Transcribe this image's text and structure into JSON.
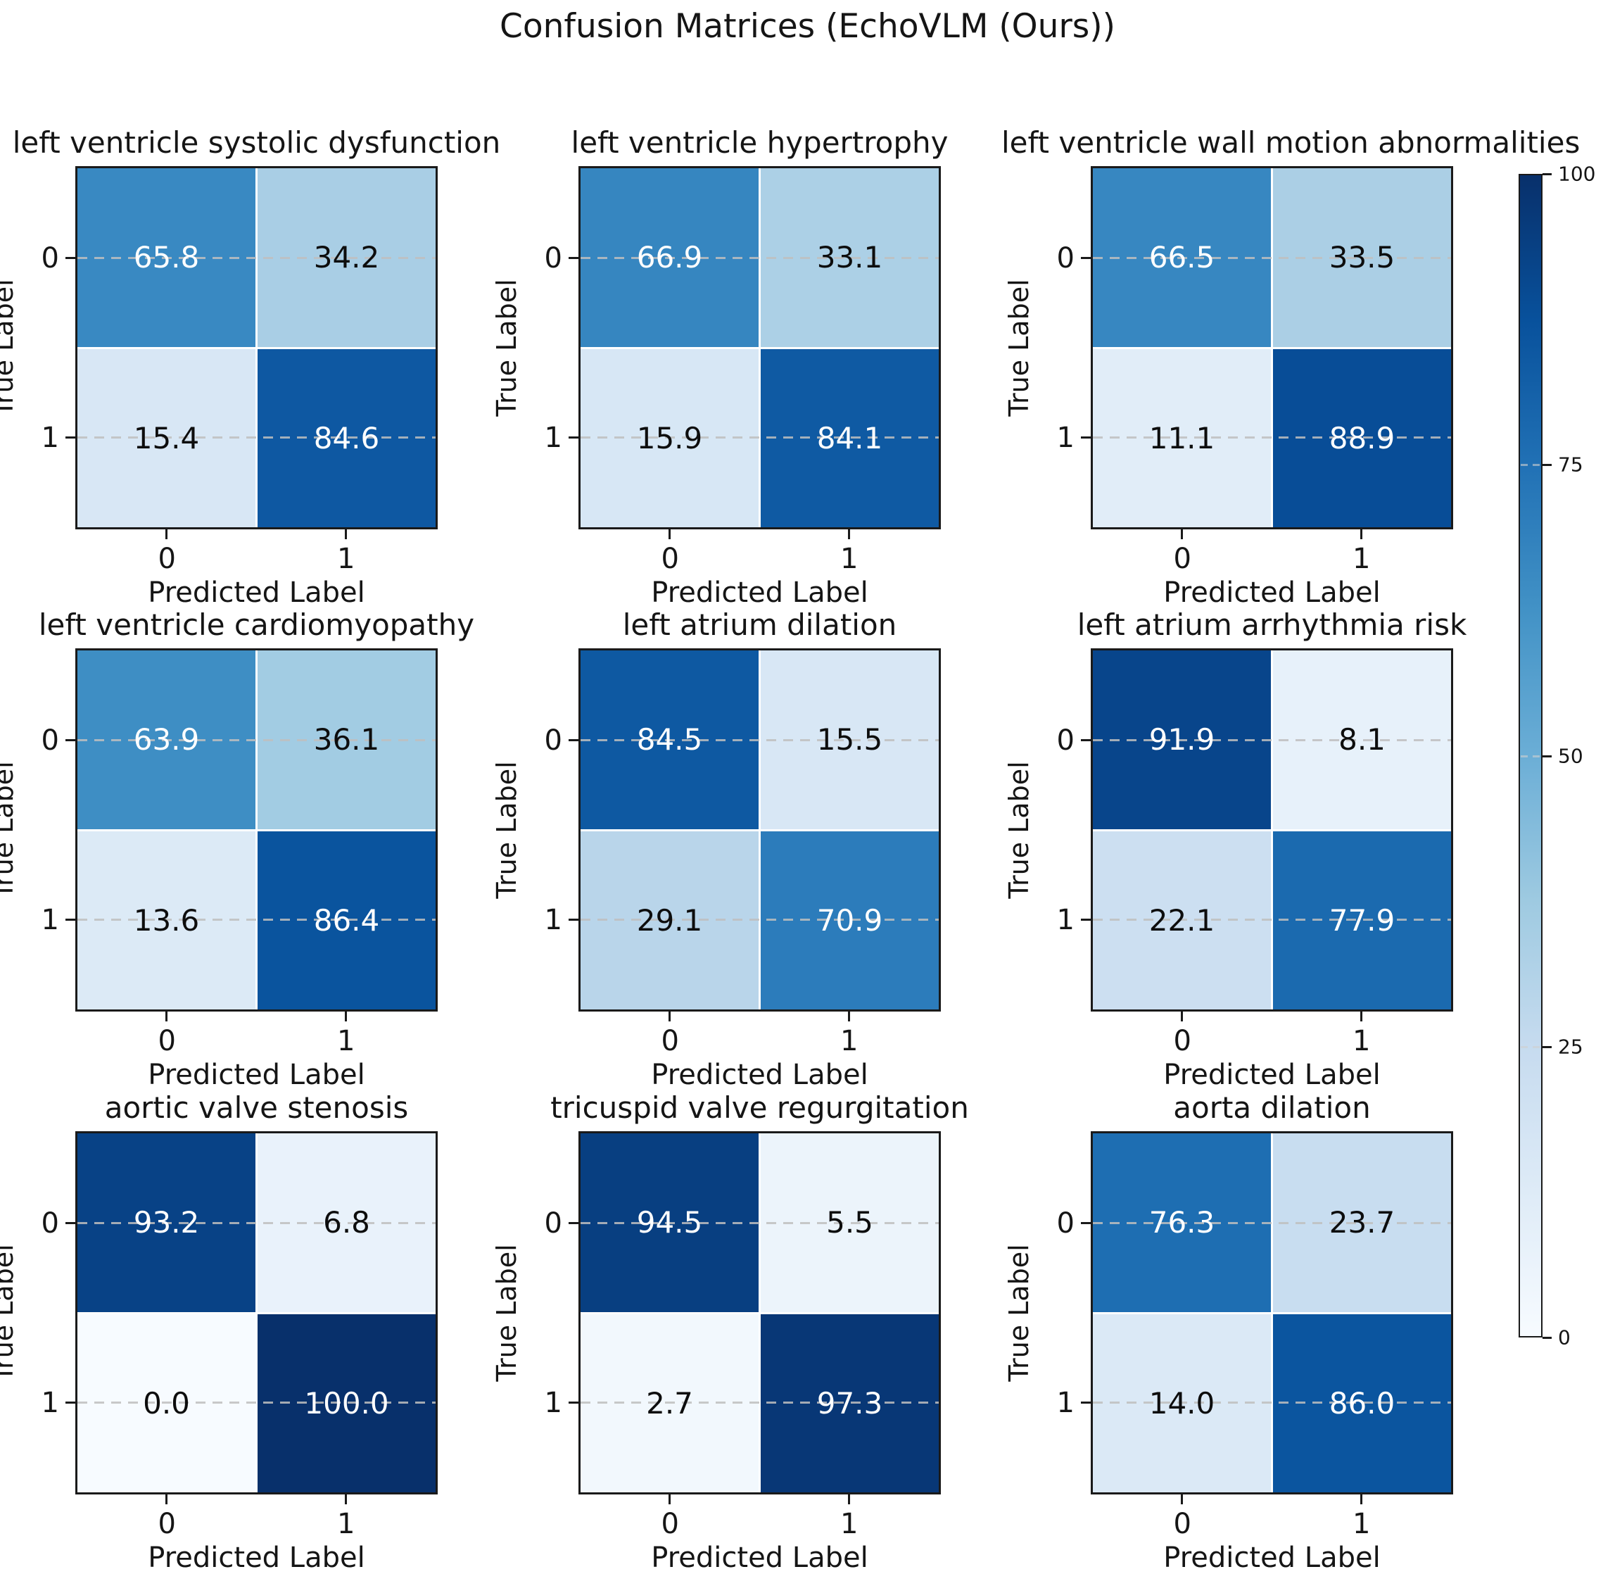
{
  "style": {
    "colormap_name": "Blues",
    "colormap_anchors": [
      "#f7fbff",
      "#deebf7",
      "#c6dbef",
      "#9ecae1",
      "#6baed6",
      "#4292c6",
      "#2171b5",
      "#08519c",
      "#08306b"
    ],
    "cell_text_light": "#ffffff",
    "cell_text_dark": "#0d0d0d",
    "gridline_color": "#bfbfbf",
    "spine_color": "#1a1a1a",
    "background": "#ffffff"
  },
  "chart_data": {
    "type": "heatmap",
    "suptitle": "Confusion Matrices (EchoVLM (Ours))",
    "xlabel": "Predicted Label",
    "ylabel": "True Label",
    "x_categories": [
      "0",
      "1"
    ],
    "y_categories": [
      "0",
      "1"
    ],
    "vmin": 0,
    "vmax": 100,
    "colorbar_ticks": [
      0,
      25,
      50,
      75,
      100
    ],
    "grid": "horizontal-dashed",
    "legend_position": "right-colorbar",
    "matrices": [
      {
        "title": "left ventricle systolic dysfunction",
        "values": [
          [
            65.8,
            34.2
          ],
          [
            15.4,
            84.6
          ]
        ]
      },
      {
        "title": "left ventricle hypertrophy",
        "values": [
          [
            66.9,
            33.1
          ],
          [
            15.9,
            84.1
          ]
        ]
      },
      {
        "title": "left ventricle wall motion abnormalities",
        "values": [
          [
            66.5,
            33.5
          ],
          [
            11.1,
            88.9
          ]
        ]
      },
      {
        "title": "left ventricle cardiomyopathy",
        "values": [
          [
            63.9,
            36.1
          ],
          [
            13.6,
            86.4
          ]
        ]
      },
      {
        "title": "left atrium dilation",
        "values": [
          [
            84.5,
            15.5
          ],
          [
            29.1,
            70.9
          ]
        ]
      },
      {
        "title": "left atrium arrhythmia risk",
        "values": [
          [
            91.9,
            8.1
          ],
          [
            22.1,
            77.9
          ]
        ]
      },
      {
        "title": "aortic valve stenosis",
        "values": [
          [
            93.2,
            6.8
          ],
          [
            0.0,
            100.0
          ]
        ]
      },
      {
        "title": "tricuspid valve regurgitation",
        "values": [
          [
            94.5,
            5.5
          ],
          [
            2.7,
            97.3
          ]
        ]
      },
      {
        "title": "aorta dilation",
        "values": [
          [
            76.3,
            23.7
          ],
          [
            14.0,
            86.0
          ]
        ]
      }
    ]
  }
}
